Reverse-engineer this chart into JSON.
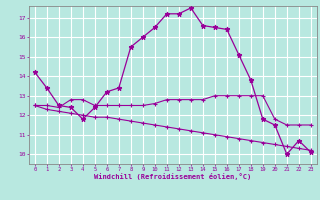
{
  "bg_color": "#b8e8e0",
  "grid_color": "#ffffff",
  "line_color": "#990099",
  "xlabel": "Windchill (Refroidissement éolien,°C)",
  "hours": [
    0,
    1,
    2,
    3,
    4,
    5,
    6,
    7,
    8,
    9,
    10,
    11,
    12,
    13,
    14,
    15,
    16,
    17,
    18,
    19,
    20,
    21,
    22,
    23
  ],
  "temp": [
    14.2,
    13.4,
    12.5,
    12.4,
    11.8,
    12.4,
    13.2,
    13.4,
    15.5,
    16.0,
    16.5,
    17.2,
    17.2,
    17.5,
    16.6,
    16.5,
    16.4,
    15.1,
    13.8,
    11.8,
    11.5,
    10.0,
    10.7,
    10.1
  ],
  "line2": [
    12.5,
    12.5,
    12.4,
    12.8,
    12.8,
    12.5,
    12.5,
    12.5,
    12.5,
    12.5,
    12.6,
    12.8,
    12.8,
    12.8,
    12.8,
    13.0,
    13.0,
    13.0,
    13.0,
    13.0,
    11.8,
    11.5,
    11.5,
    11.5
  ],
  "line3": [
    12.5,
    12.3,
    12.2,
    12.1,
    12.0,
    11.9,
    11.9,
    11.8,
    11.7,
    11.6,
    11.5,
    11.4,
    11.3,
    11.2,
    11.1,
    11.0,
    10.9,
    10.8,
    10.7,
    10.6,
    10.5,
    10.4,
    10.3,
    10.2
  ],
  "yticks": [
    10,
    11,
    12,
    13,
    14,
    15,
    16,
    17
  ],
  "ylim_min": 9.5,
  "ylim_max": 17.6
}
